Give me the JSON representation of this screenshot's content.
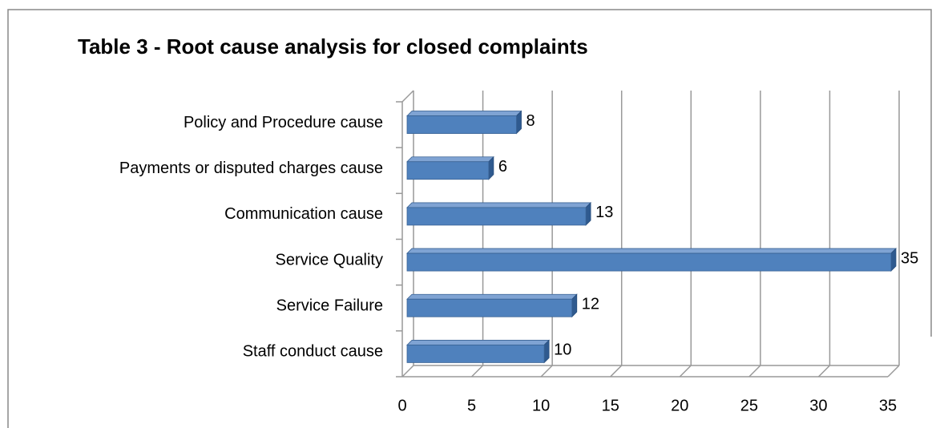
{
  "chart_data": {
    "type": "bar3d",
    "orientation": "horizontal",
    "title": "Table 3 - Root cause analysis for closed complaints",
    "categories": [
      "Policy and Procedure cause",
      "Payments or disputed charges cause",
      "Communication cause",
      "Service Quality",
      "Service Failure",
      "Staff conduct cause"
    ],
    "values": [
      8,
      6,
      13,
      35,
      12,
      10
    ],
    "color": "#4f81bd",
    "xlim": [
      0,
      35
    ],
    "xticks": [
      0,
      5,
      10,
      15,
      20,
      25,
      30,
      35
    ],
    "grid": true
  }
}
